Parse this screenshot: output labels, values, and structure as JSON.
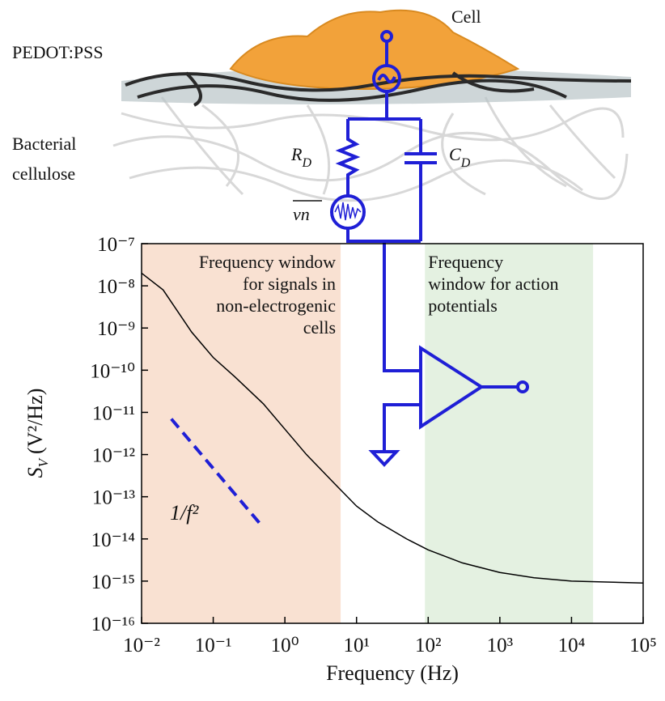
{
  "chart_data": {
    "type": "line",
    "xlabel": "Frequency (Hz)",
    "ylabel": {
      "symbol": "S",
      "subscript": "V",
      "unit": "(V²/Hz)"
    },
    "xscale": "log",
    "yscale": "log",
    "xlim": [
      0.01,
      100000
    ],
    "ylim": [
      1e-16,
      1e-07
    ],
    "xticks": [
      {
        "value": 0.01,
        "label": "10⁻²"
      },
      {
        "value": 0.1,
        "label": "10⁻¹"
      },
      {
        "value": 1,
        "label": "10⁰"
      },
      {
        "value": 10,
        "label": "10¹"
      },
      {
        "value": 100,
        "label": "10²"
      },
      {
        "value": 1000,
        "label": "10³"
      },
      {
        "value": 10000,
        "label": "10⁴"
      },
      {
        "value": 100000,
        "label": "10⁵"
      }
    ],
    "yticks": [
      {
        "value": 1e-16,
        "label": "10⁻¹⁶"
      },
      {
        "value": 1e-15,
        "label": "10⁻¹⁵"
      },
      {
        "value": 1e-14,
        "label": "10⁻¹⁴"
      },
      {
        "value": 1e-13,
        "label": "10⁻¹³"
      },
      {
        "value": 1e-12,
        "label": "10⁻¹²"
      },
      {
        "value": 1e-11,
        "label": "10⁻¹¹"
      },
      {
        "value": 1e-10,
        "label": "10⁻¹⁰"
      },
      {
        "value": 1e-09,
        "label": "10⁻⁹"
      },
      {
        "value": 1e-08,
        "label": "10⁻⁸"
      },
      {
        "value": 1e-07,
        "label": "10⁻⁷"
      }
    ],
    "series": [
      {
        "color": "#000000",
        "x": [
          0.01,
          0.02,
          0.05,
          0.1,
          0.2,
          0.5,
          1,
          2,
          5,
          10,
          20,
          50,
          100,
          300,
          1000,
          3000,
          10000,
          100000
        ],
        "values": [
          2e-08,
          8e-09,
          8e-10,
          2e-10,
          7e-11,
          1.6e-11,
          4e-12,
          1e-12,
          2e-13,
          6e-14,
          2.5e-14,
          1e-14,
          5.5e-15,
          2.7e-15,
          1.6e-15,
          1.2e-15,
          1e-15,
          9e-16
        ]
      }
    ],
    "reference_line": {
      "label": "1/f²",
      "color": "#1f1fd6",
      "x": [
        0.026,
        0.46
      ],
      "values": [
        7e-12,
        2.2e-14
      ]
    },
    "regions": [
      {
        "lines": [
          "Frequency window",
          "for signals in",
          "non-electrogenic",
          "cells"
        ],
        "x": [
          0.01,
          6
        ],
        "color": "#f9e1d2"
      },
      {
        "lines": [
          "Frequency",
          "window for action",
          "potentials"
        ],
        "x": [
          90,
          20000
        ],
        "color": "#e4f1e1"
      }
    ]
  },
  "diagram": {
    "cell": "Cell",
    "pedot": "PEDOT:PSS",
    "cellulose": [
      "Bacterial",
      "cellulose"
    ],
    "resistor": {
      "symbol": "R",
      "subscript": "D"
    },
    "capacitor": {
      "symbol": "C",
      "subscript": "D"
    },
    "noise": "vn"
  }
}
